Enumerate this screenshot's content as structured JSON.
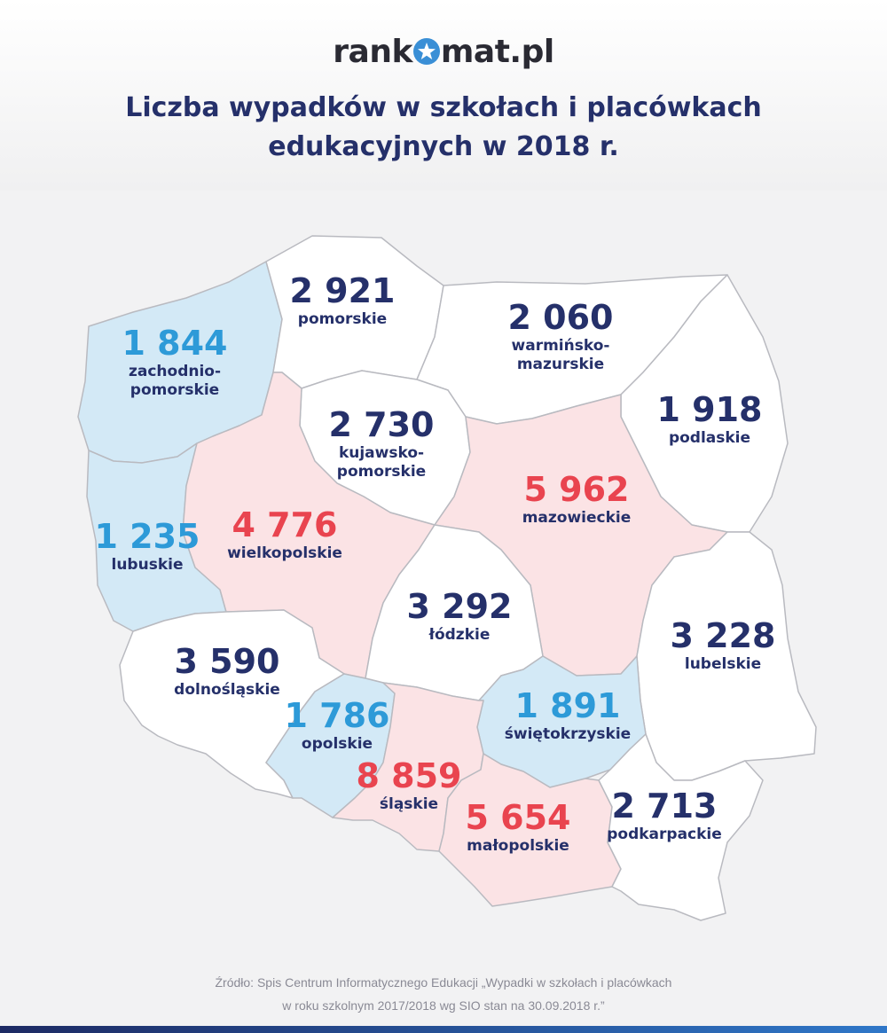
{
  "logo": {
    "text_before": "rank",
    "text_after": "mat.pl"
  },
  "title": {
    "line1": "Liczba wypadków w szkołach i placówkach",
    "line2": "edukacyjnych w 2018 r."
  },
  "colors": {
    "navy": "#25306a",
    "red": "#e9444f",
    "blue": "#2d9ad8",
    "pink_fill": "#fbe3e5",
    "blue_fill": "#d3e9f6"
  },
  "regions": [
    {
      "id": "zachodniopomorskie",
      "value": "1 844",
      "name_lines": [
        "zachodnio-",
        "pomorskie"
      ],
      "color": "blue"
    },
    {
      "id": "pomorskie",
      "value": "2 921",
      "name_lines": [
        "pomorskie"
      ],
      "color": "navy"
    },
    {
      "id": "warminsko-mazurskie",
      "value": "2 060",
      "name_lines": [
        "warmińsko-",
        "mazurskie"
      ],
      "color": "navy"
    },
    {
      "id": "podlaskie",
      "value": "1 918",
      "name_lines": [
        "podlaskie"
      ],
      "color": "navy"
    },
    {
      "id": "kujawsko-pomorskie",
      "value": "2 730",
      "name_lines": [
        "kujawsko-",
        "pomorskie"
      ],
      "color": "navy"
    },
    {
      "id": "mazowieckie",
      "value": "5 962",
      "name_lines": [
        "mazowieckie"
      ],
      "color": "red"
    },
    {
      "id": "lubuskie",
      "value": "1 235",
      "name_lines": [
        "lubuskie"
      ],
      "color": "blue"
    },
    {
      "id": "wielkopolskie",
      "value": "4 776",
      "name_lines": [
        "wielkopolskie"
      ],
      "color": "red"
    },
    {
      "id": "lodzkie",
      "value": "3 292",
      "name_lines": [
        "łódzkie"
      ],
      "color": "navy"
    },
    {
      "id": "lubelskie",
      "value": "3 228",
      "name_lines": [
        "lubelskie"
      ],
      "color": "navy"
    },
    {
      "id": "dolnoslaskie",
      "value": "3 590",
      "name_lines": [
        "dolnośląskie"
      ],
      "color": "navy"
    },
    {
      "id": "opolskie",
      "value": "1 786",
      "name_lines": [
        "opolskie"
      ],
      "color": "blue"
    },
    {
      "id": "swietokrzyskie",
      "value": "1 891",
      "name_lines": [
        "świętokrzyskie"
      ],
      "color": "blue"
    },
    {
      "id": "slaskie",
      "value": "8 859",
      "name_lines": [
        "śląskie"
      ],
      "color": "red"
    },
    {
      "id": "malopolskie",
      "value": "5 654",
      "name_lines": [
        "małopolskie"
      ],
      "color": "red"
    },
    {
      "id": "podkarpackie",
      "value": "2 713",
      "name_lines": [
        "podkarpackie"
      ],
      "color": "navy"
    }
  ],
  "source": {
    "line1": "Źródło: Spis Centrum Informatycznego Edukacji „Wypadki w szkołach i placówkach",
    "line2": "w roku szkolnym 2017/2018 wg SIO stan na 30.09.2018 r.”"
  }
}
